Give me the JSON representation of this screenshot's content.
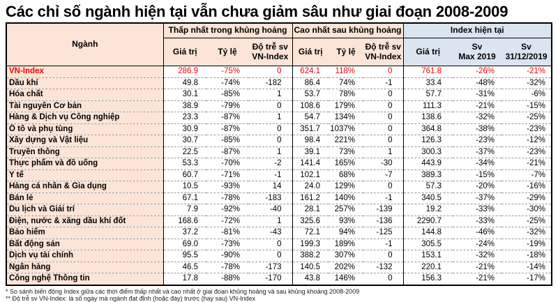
{
  "title": "Các chỉ số ngành hiện tại vẫn chưa giảm sâu như giai đoạn 2008-2009",
  "colors": {
    "accent_blue": "#2e74b5",
    "header_peach": "#fce4d6",
    "header_blue": "#dbe5f1",
    "highlight_red": "#ff0000",
    "row_divider": "#9a9a9a"
  },
  "table": {
    "sector_header": "Ngành",
    "groups": [
      {
        "label": "Thấp nhất trong khủng hoảng",
        "columns": [
          "Giá trị",
          "Tỷ lệ",
          "Độ trễ sv\nVN-Index"
        ]
      },
      {
        "label": "Cao nhất sau khủng hoảng",
        "columns": [
          "Giá trị",
          "Tỷ lệ",
          "Độ trễ sv\nVN-Index"
        ]
      },
      {
        "label": "Index hiện tại",
        "columns": [
          "Giá trị",
          "Sv\nMax 2019",
          "Sv\n31/12/2019"
        ]
      }
    ],
    "rows": [
      {
        "name": "VN-Index",
        "highlight": true,
        "values": [
          "286.9",
          "-75%",
          "0",
          "624.1",
          "118%",
          "0",
          "761.8",
          "-26%",
          "-21%"
        ]
      },
      {
        "name": "Dầu khí",
        "highlight": false,
        "values": [
          "49.8",
          "-74%",
          "-182",
          "86.4",
          "74%",
          "-1",
          "33.4",
          "-48%",
          "-32%"
        ]
      },
      {
        "name": "Hóa chất",
        "highlight": false,
        "values": [
          "30.1",
          "-85%",
          "1",
          "53.7",
          "78%",
          "0",
          "57.7",
          "-31%",
          "-6%"
        ]
      },
      {
        "name": "Tài nguyên Cơ bản",
        "highlight": false,
        "values": [
          "38.9",
          "-79%",
          "0",
          "108.6",
          "179%",
          "0",
          "111.3",
          "-21%",
          "-15%"
        ]
      },
      {
        "name": "Hàng & Dịch vụ Công nghiệp",
        "highlight": false,
        "values": [
          "23.3",
          "-87%",
          "1",
          "54.7",
          "134%",
          "0",
          "138.6",
          "-32%",
          "-25%"
        ]
      },
      {
        "name": "Ô tô và phụ tùng",
        "highlight": false,
        "values": [
          "30.9",
          "-87%",
          "0",
          "351.7",
          "1037%",
          "0",
          "364.8",
          "-38%",
          "-23%"
        ]
      },
      {
        "name": "Xây dựng và Vật liệu",
        "highlight": false,
        "values": [
          "30.7",
          "-85%",
          "0",
          "98.4",
          "221%",
          "0",
          "126.3",
          "-23%",
          "-12%"
        ]
      },
      {
        "name": "Truyền thông",
        "highlight": false,
        "values": [
          "22.5",
          "-87%",
          "1",
          "39.1",
          "73%",
          "1",
          "300.3",
          "-37%",
          "-23%"
        ]
      },
      {
        "name": "Thực phẩm và đồ uống",
        "highlight": false,
        "values": [
          "53.3",
          "-70%",
          "-2",
          "141.4",
          "165%",
          "-30",
          "443.9",
          "-34%",
          "-21%"
        ]
      },
      {
        "name": "Y tế",
        "highlight": false,
        "values": [
          "60.7",
          "-71%",
          "-1",
          "102.1",
          "68%",
          "-7",
          "389.3",
          "-15%",
          "-7%"
        ]
      },
      {
        "name": "Hàng cá nhân & Gia dụng",
        "highlight": false,
        "values": [
          "10.5",
          "-93%",
          "14",
          "24.0",
          "129%",
          "0",
          "57.3",
          "-20%",
          "-16%"
        ]
      },
      {
        "name": "Bán lẻ",
        "highlight": false,
        "values": [
          "67.1",
          "-78%",
          "-183",
          "161.2",
          "140%",
          "-1",
          "340.5",
          "-37%",
          "-29%"
        ]
      },
      {
        "name": "Du lịch và Giải trí",
        "highlight": false,
        "values": [
          "7.9",
          "-92%",
          "-40",
          "28.1",
          "257%",
          "-139",
          "19.2",
          "-33%",
          "-30%"
        ]
      },
      {
        "name": "Điện, nước & xăng dầu khí đốt",
        "highlight": false,
        "values": [
          "168.6",
          "-72%",
          "1",
          "325.6",
          "93%",
          "-136",
          "2290.7",
          "-33%",
          "-25%"
        ]
      },
      {
        "name": "Bảo hiểm",
        "highlight": false,
        "values": [
          "37.2",
          "-81%",
          "-43",
          "72.1",
          "94%",
          "-125",
          "144.8",
          "-46%",
          "-32%"
        ]
      },
      {
        "name": "Bất động sản",
        "highlight": false,
        "values": [
          "69.0",
          "-73%",
          "0",
          "199.3",
          "189%",
          "-1",
          "305.5",
          "-24%",
          "-19%"
        ]
      },
      {
        "name": "Dịch vụ tài chính",
        "highlight": false,
        "values": [
          "95.5",
          "-90%",
          "0",
          "388.2",
          "307%",
          "0",
          "153.1",
          "-32%",
          "-18%"
        ]
      },
      {
        "name": "Ngân hàng",
        "highlight": false,
        "values": [
          "46.5",
          "-78%",
          "-173",
          "140.5",
          "202%",
          "-132",
          "220.1",
          "-21%",
          "-14%"
        ]
      },
      {
        "name": "Công nghệ Thông tin",
        "highlight": false,
        "values": [
          "17.8",
          "-88%",
          "-170",
          "43.8",
          "146%",
          "0",
          "156.3",
          "-21%",
          "-17%"
        ]
      }
    ]
  },
  "footnotes": [
    "* So sánh biến động Index giữa các thời điểm thấp nhất và cao nhất ở giai đoạn khủng hoảng và sau khủng khoảng 2008-2009",
    "** Độ trễ sv VN-Index: là số ngày mà ngành đạt đỉnh (hoặc đáy) trước (hay sau) VN-Index"
  ]
}
